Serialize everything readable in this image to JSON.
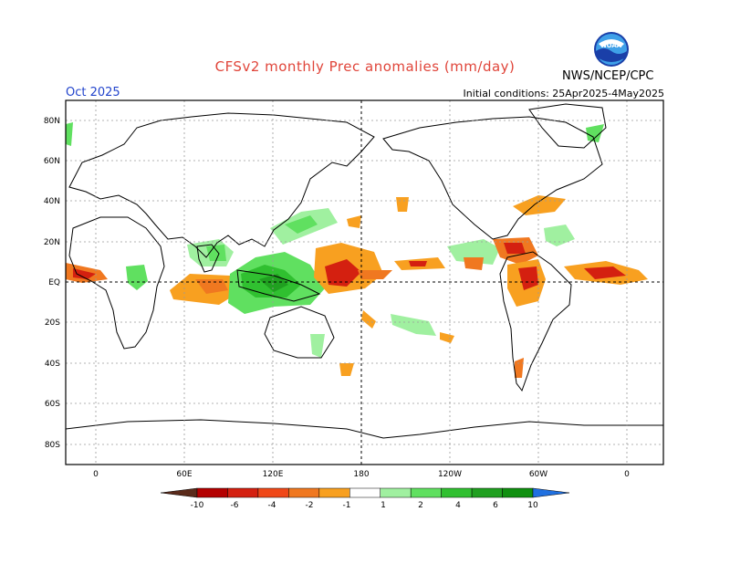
{
  "header": {
    "title": "CFSv2 monthly Prec anomalies (mm/day)",
    "month": "Oct 2025",
    "initial_conditions": "Initial conditions: 25Apr2025-4May2025",
    "agency": "NWS/NCEP/CPC",
    "logo_text": "NOAA"
  },
  "map": {
    "lat_labels": [
      "80N",
      "60N",
      "40N",
      "20N",
      "EQ",
      "20S",
      "40S",
      "60S",
      "80S"
    ],
    "lon_labels": [
      "0",
      "60E",
      "120E",
      "180",
      "120W",
      "60W",
      "0"
    ]
  },
  "legend": {
    "labels": [
      "-10",
      "-6",
      "-4",
      "-2",
      "-1",
      "1",
      "2",
      "4",
      "6",
      "10"
    ],
    "colors": [
      "#5a2a1a",
      "#b40000",
      "#d42010",
      "#f04818",
      "#f07820",
      "#f8a020",
      "#ffffff",
      "#a0f0a0",
      "#60e060",
      "#30c030",
      "#20a020",
      "#109010",
      "#2070e0"
    ]
  }
}
